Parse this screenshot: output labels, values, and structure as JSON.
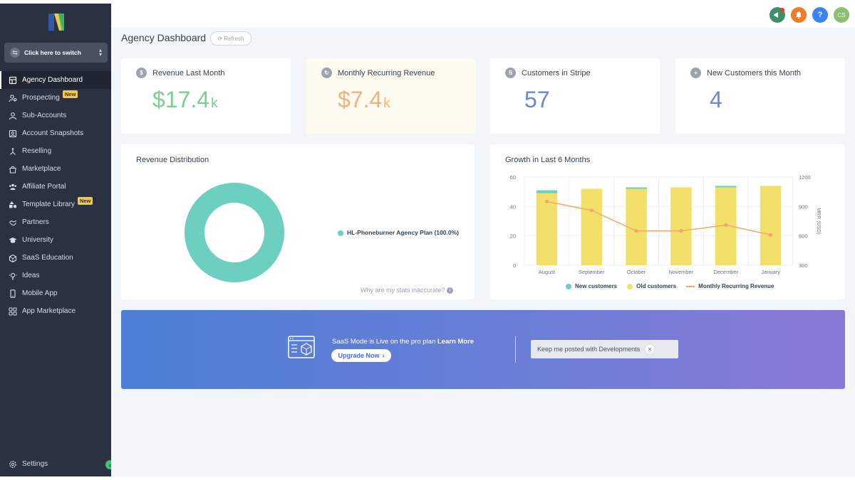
{
  "sidebar": {
    "switcher_label": "Click here to switch",
    "items": [
      {
        "label": "Agency Dashboard",
        "icon": "dashboard-icon",
        "active": true
      },
      {
        "label": "Prospecting",
        "icon": "prospecting-icon",
        "badge": "New"
      },
      {
        "label": "Sub-Accounts",
        "icon": "user-icon"
      },
      {
        "label": "Account Snapshots",
        "icon": "snapshot-icon"
      },
      {
        "label": "Reselling",
        "icon": "reselling-icon"
      },
      {
        "label": "Marketplace",
        "icon": "marketplace-icon"
      },
      {
        "label": "Affiliate Portal",
        "icon": "affiliate-icon"
      },
      {
        "label": "Template Library",
        "icon": "template-icon",
        "badge": "New"
      },
      {
        "label": "Partners",
        "icon": "handshake-icon"
      },
      {
        "label": "University",
        "icon": "graduation-cap-icon"
      },
      {
        "label": "SaaS Education",
        "icon": "saas-education-icon"
      },
      {
        "label": "Ideas",
        "icon": "lightbulb-icon"
      },
      {
        "label": "Mobile App",
        "icon": "mobile-icon"
      },
      {
        "label": "App Marketplace",
        "icon": "app-grid-icon"
      }
    ],
    "settings_label": "Settings"
  },
  "topbar": {
    "avatar_initials": "CS",
    "colors": {
      "announce": "#3f8f6a",
      "bell": "#f07a2b",
      "help": "#3b82f6",
      "avatar": "#8cc06f"
    }
  },
  "header": {
    "title": "Agency Dashboard",
    "refresh_label": "Refresh"
  },
  "stats": [
    {
      "label": "Revenue Last Month",
      "value": "$17.4",
      "unit": "k",
      "color": "#7ccf8f",
      "icon": "dollar-icon"
    },
    {
      "label": "Monthly Recurring Revenue",
      "value": "$7.4",
      "unit": "k",
      "color": "#f0b27c",
      "icon": "recurring-icon"
    },
    {
      "label": "Customers in Stripe",
      "value": "57",
      "unit": "",
      "color": "#6f86d6",
      "icon": "stripe-icon"
    },
    {
      "label": "New Customers this Month",
      "value": "4",
      "unit": "",
      "color": "#6f86d6",
      "icon": "new-user-icon"
    }
  ],
  "revenue_distribution": {
    "title": "Revenue Distribution",
    "legend_label": "HL-Phoneburner Agency Plan (100.0%)",
    "color": "#6dcfbf",
    "footer": "Why are my stats inaccurate?"
  },
  "growth": {
    "title": "Growth in Last 6 Months",
    "right_axis_label": "MRR (USD)",
    "legend": {
      "new_customers": "New customers",
      "old_customers": "Old customers",
      "mrr": "Monthly Recurring Revenue"
    }
  },
  "chart_data": {
    "type": "bar",
    "categories": [
      "August",
      "September",
      "October",
      "November",
      "December",
      "January"
    ],
    "series": [
      {
        "name": "Old customers",
        "values": [
          49,
          52,
          52,
          53,
          53,
          54
        ],
        "color": "#f2e06b",
        "axis": "left"
      },
      {
        "name": "New customers",
        "values": [
          2,
          0,
          1,
          0,
          1,
          0
        ],
        "color": "#6dcfbf",
        "axis": "left"
      },
      {
        "name": "Monthly Recurring Revenue",
        "type": "line",
        "values": [
          950,
          860,
          650,
          650,
          710,
          610
        ],
        "color": "#f0a868",
        "axis": "right"
      }
    ],
    "ylim": [
      0,
      60
    ],
    "yticks": [
      0,
      20,
      40,
      60
    ],
    "y2lim": [
      300,
      1200
    ],
    "y2ticks": [
      300,
      600,
      900,
      1200
    ],
    "y2label": "MRR (USD)",
    "grid": true,
    "legend": "bottom"
  },
  "banner": {
    "text_prefix": "SaaS Mode is Live on the pro plan",
    "learn_more": "Learn More",
    "upgrade_label": "Upgrade Now",
    "keep_posted_label": "Keep me posted with Developments"
  }
}
